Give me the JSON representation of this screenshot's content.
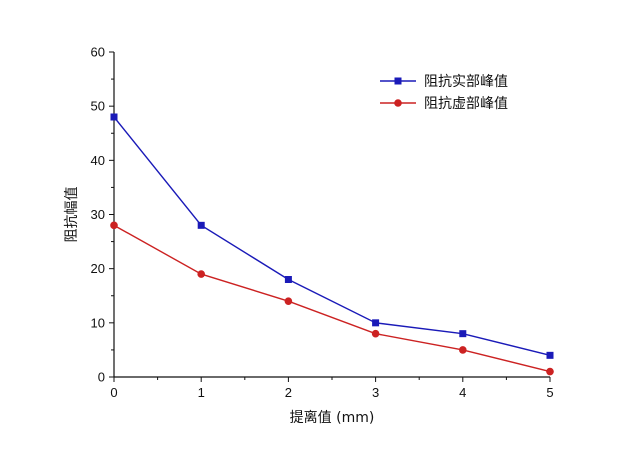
{
  "chart_data": {
    "type": "line",
    "x": [
      0,
      1,
      2,
      3,
      4,
      5
    ],
    "xlabel": "提离值 (mm)",
    "ylabel": "阻抗幅值",
    "xlim": [
      0,
      5
    ],
    "ylim": [
      0,
      60
    ],
    "x_ticks": [
      "0",
      "1",
      "2",
      "3",
      "4",
      "5"
    ],
    "y_ticks": [
      "0",
      "10",
      "20",
      "30",
      "40",
      "50",
      "60"
    ],
    "grid": false,
    "legend_position": "top-right",
    "series": [
      {
        "name": "阻抗实部峰值",
        "values": [
          48,
          28,
          18,
          10,
          8,
          4
        ],
        "color": "#1a1ab8",
        "marker": "square"
      },
      {
        "name": "阻抗虚部峰值",
        "values": [
          28,
          19,
          14,
          8,
          5,
          1
        ],
        "color": "#cc2222",
        "marker": "circle"
      }
    ]
  }
}
